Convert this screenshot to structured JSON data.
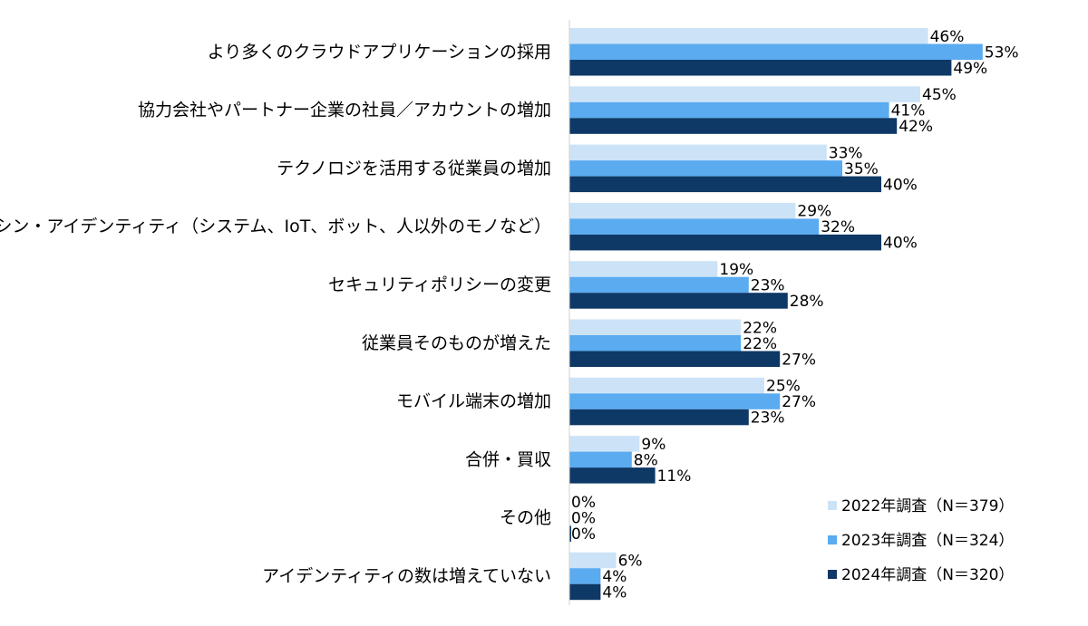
{
  "chart_data": {
    "type": "bar",
    "orientation": "horizontal",
    "categories": [
      "より多くのクラウドアプリケーションの採用",
      "協力会社やパートナー企業の社員／アカウントの増加",
      "テクノロジを活用する従業員の増加",
      "マシン・アイデンティティ（システム、IoT、ボット、人以外のモノなど）",
      "セキュリティポリシーの変更",
      "従業員そのものが増えた",
      "モバイル端末の増加",
      "合併・買収",
      "その他",
      "アイデンティティの数は増えていない"
    ],
    "series": [
      {
        "name": "2022年調査（N＝379）",
        "color": "#cce3f7",
        "values": [
          46,
          45,
          33,
          29,
          19,
          22,
          25,
          9,
          0,
          6
        ]
      },
      {
        "name": "2023年調査（N＝324）",
        "color": "#5aabf0",
        "values": [
          53,
          41,
          35,
          32,
          23,
          22,
          27,
          8,
          0,
          4
        ]
      },
      {
        "name": "2024年調査（N＝320）",
        "color": "#0e3866",
        "values": [
          49,
          42,
          40,
          40,
          28,
          27,
          23,
          11,
          0,
          4
        ]
      }
    ],
    "value_suffix": "%",
    "xlim": [
      0,
      60
    ],
    "grid": false,
    "legend_position": "bottom-right"
  }
}
